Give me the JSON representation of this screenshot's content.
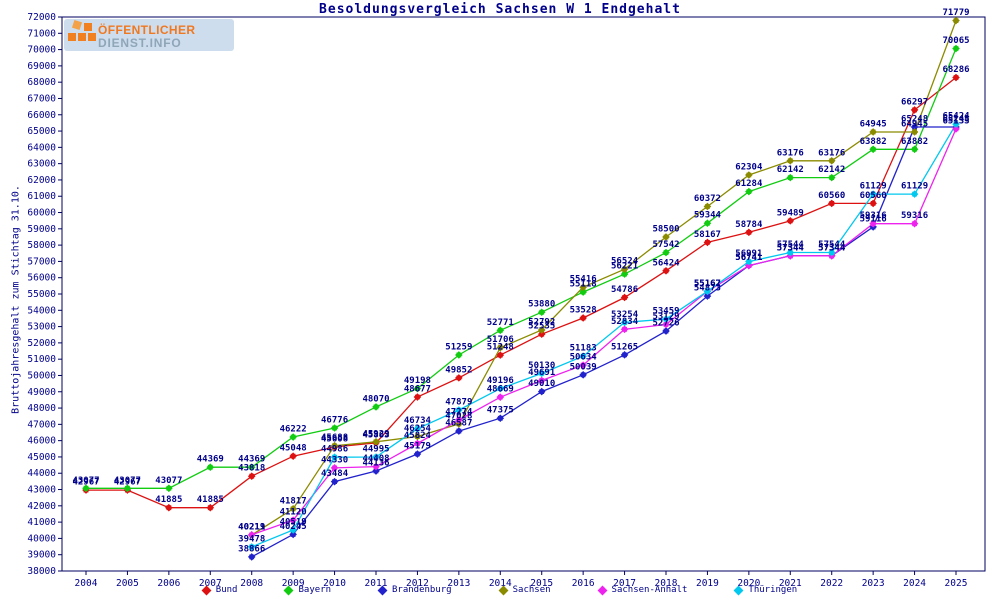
{
  "logo": {
    "line1": "ÖFFENTLICHER",
    "line2": "DIENST.INFO"
  },
  "header": {
    "title": "Besoldungsvergleich Sachsen W 1 Endgehalt"
  },
  "chart_data": {
    "type": "line",
    "title": "Besoldungsvergleich Sachsen W 1 Endgehalt",
    "xlabel": "",
    "ylabel": "Bruttojahresgehalt zum Stichtag 31.10.",
    "ylim": [
      38000,
      72000
    ],
    "ytick_step": 1000,
    "grid": false,
    "point_labels": true,
    "legend_position": "bottom",
    "x": [
      2004,
      2005,
      2006,
      2007,
      2008,
      2009,
      2010,
      2011,
      2012,
      2013,
      2014,
      2015,
      2016,
      2017,
      2018,
      2019,
      2020,
      2021,
      2022,
      2023,
      2024,
      2025
    ],
    "series": [
      {
        "name": "Bund",
        "color": "#DD1111",
        "values": [
          42967,
          42967,
          41885,
          41885,
          43818,
          45048,
          45608,
          45863,
          48677,
          49852,
          51248,
          52535,
          53528,
          54786,
          56424,
          58167,
          58784,
          59489,
          60560,
          60560,
          66297,
          68286
        ]
      },
      {
        "name": "Bayern",
        "color": "#11CC11",
        "values": [
          43077,
          43077,
          43077,
          44369,
          44369,
          46222,
          46776,
          48070,
          49198,
          51259,
          52771,
          53880,
          55118,
          56221,
          57542,
          59344,
          61284,
          62142,
          62142,
          63882,
          63882,
          70065
        ]
      },
      {
        "name": "Brandenburg",
        "color": "#2222CC",
        "values": [
          null,
          null,
          null,
          null,
          38866,
          40245,
          43484,
          44136,
          45179,
          46587,
          47375,
          49010,
          50039,
          51265,
          52726,
          54873,
          56741,
          57344,
          57344,
          59116,
          65248,
          65248
        ]
      },
      {
        "name": "Sachsen",
        "color": "#8B8B00",
        "values": [
          null,
          null,
          null,
          null,
          40211,
          41817,
          45688,
          45929,
          46254,
          47028,
          51706,
          52792,
          55416,
          56524,
          58500,
          60372,
          62304,
          63176,
          63176,
          64945,
          64945,
          71779
        ]
      },
      {
        "name": "Sachsen-Anhalt",
        "color": "#EE22EE",
        "values": [
          null,
          null,
          null,
          null,
          40219,
          41120,
          44330,
          44408,
          45824,
          47274,
          48669,
          49691,
          50634,
          52834,
          53129,
          55162,
          56741,
          57344,
          57344,
          59316,
          59316,
          65133
        ]
      },
      {
        "name": "Thüringen",
        "color": "#00C8EE",
        "values": [
          null,
          null,
          null,
          null,
          39478,
          40519,
          44986,
          44995,
          46734,
          47879,
          49196,
          50130,
          51183,
          53254,
          53459,
          55167,
          56991,
          57544,
          57544,
          61129,
          61129,
          65424
        ]
      }
    ]
  },
  "colors": {
    "label_text": "#00008B",
    "frame": "#000060",
    "background": "#FFFFFF"
  }
}
